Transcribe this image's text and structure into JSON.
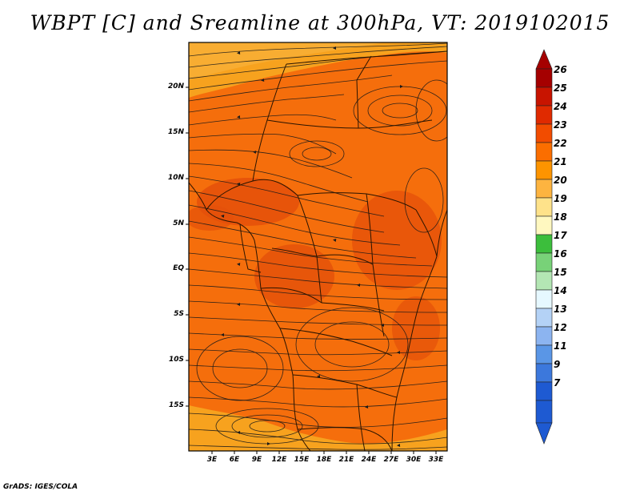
{
  "title": "WBPT [C] and Sreamline at 300hPa, VT: 2019102015",
  "footer": "GrADS: IGES/COLA",
  "axes": {
    "lat_labels": [
      "20N",
      "15N",
      "10N",
      "5N",
      "EQ",
      "5S",
      "10S",
      "15S"
    ],
    "lon_labels": [
      "3E",
      "6E",
      "9E",
      "12E",
      "15E",
      "18E",
      "21E",
      "24E",
      "27E",
      "30E",
      "33E"
    ]
  },
  "colorbar": {
    "labels": [
      "26",
      "25",
      "24",
      "23",
      "22",
      "21",
      "20",
      "19",
      "18",
      "17",
      "16",
      "15",
      "14",
      "13",
      "12",
      "11",
      "9",
      "7"
    ],
    "colors": [
      "#a50000",
      "#c81400",
      "#e02a00",
      "#f24c00",
      "#fb6e00",
      "#fd9400",
      "#fdb440",
      "#fee28a",
      "#fff8c0",
      "#3cbe3c",
      "#78d278",
      "#b4e6b4",
      "#e6f8ff",
      "#b4d2f6",
      "#8cb4f0",
      "#5a96e6",
      "#3c78dc",
      "#1e5ad2"
    ]
  },
  "colors": {
    "field_main": "#f56e0c",
    "field_warm": "#e4500a",
    "field_cool": "#f7a21e",
    "line": "#1a1a1a"
  }
}
